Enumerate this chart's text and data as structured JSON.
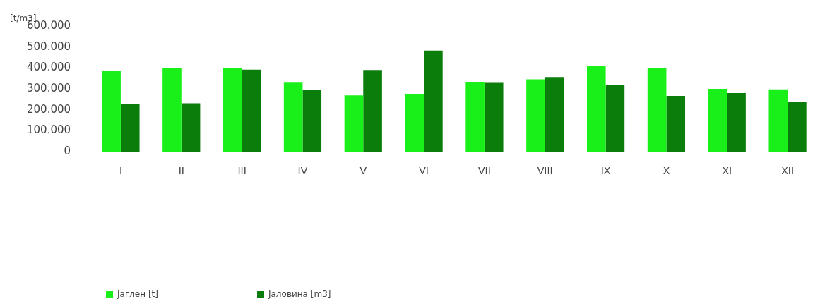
{
  "chart_data": {
    "type": "bar",
    "ylabel": "[t/m3]",
    "categories": [
      "I",
      "II",
      "III",
      "IV",
      "V",
      "VI",
      "VII",
      "VIII",
      "IX",
      "X",
      "XI",
      "XII"
    ],
    "series": [
      {
        "name": "Јаглен [t]",
        "color": "#19f019",
        "values": [
          387000,
          398000,
          398000,
          330000,
          269000,
          277000,
          334000,
          346000,
          411000,
          398000,
          300000,
          298000
        ]
      },
      {
        "name": "Јаловина [m3]",
        "color": "#0a7d0a",
        "values": [
          226000,
          231000,
          392000,
          294000,
          390000,
          483000,
          329000,
          357000,
          317000,
          267000,
          280000,
          239000
        ]
      }
    ],
    "ylim": [
      0,
      600000
    ],
    "yticks": [
      {
        "value": 0,
        "label": "0"
      },
      {
        "value": 100000,
        "label": "100.000"
      },
      {
        "value": 200000,
        "label": "200.000"
      },
      {
        "value": 300000,
        "label": "300.000"
      },
      {
        "value": 400000,
        "label": "400.000"
      },
      {
        "value": 500000,
        "label": "500.000"
      },
      {
        "value": 600000,
        "label": "600.000"
      }
    ],
    "grid": false,
    "legend": "bottom left"
  }
}
